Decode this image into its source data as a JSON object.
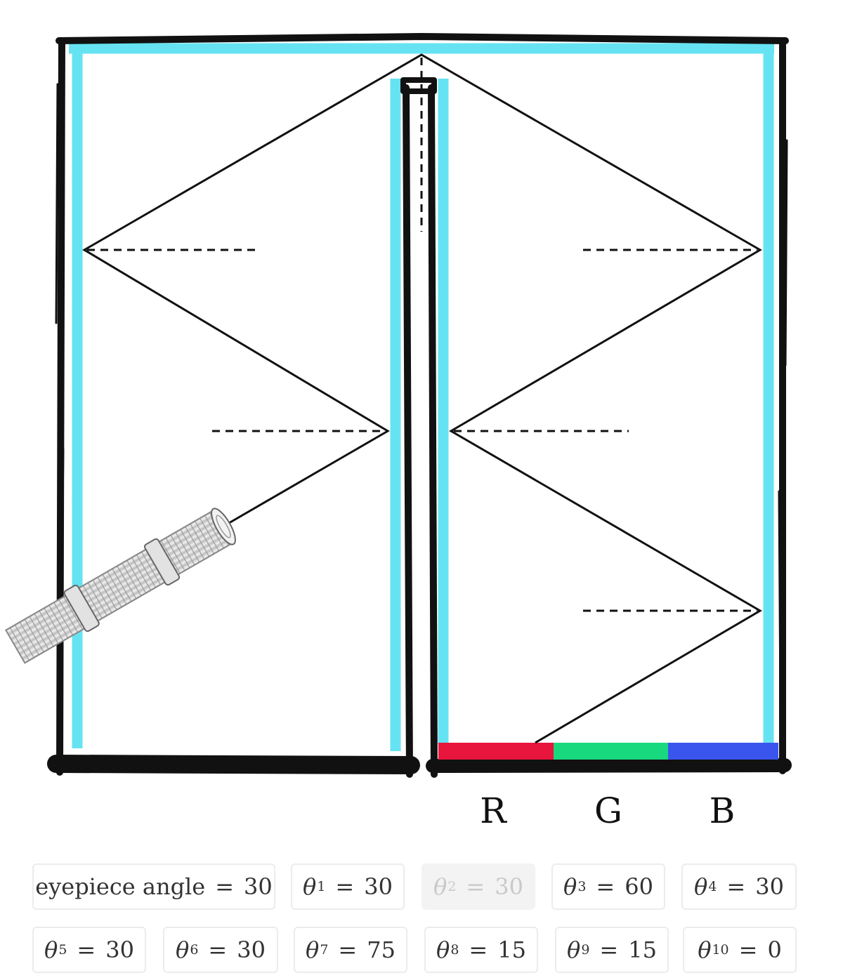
{
  "diagram": {
    "sensor_labels": [
      "R",
      "G",
      "B"
    ],
    "sensor_colors": [
      "#e8153c",
      "#19d97f",
      "#3a55ee"
    ],
    "mirror_color": "#66e3f2",
    "ink_color": "#111111",
    "eyepiece_angle_deg": 30
  },
  "controls": {
    "row1": [
      {
        "name": "eyepiece-angle",
        "symbol": "eyepiece angle",
        "sub": "",
        "value": "30",
        "disabled": false
      },
      {
        "name": "theta-1",
        "symbol": "θ",
        "sub": "1",
        "value": "30",
        "disabled": false
      },
      {
        "name": "theta-2",
        "symbol": "θ",
        "sub": "2",
        "value": "30",
        "disabled": true
      },
      {
        "name": "theta-3",
        "symbol": "θ",
        "sub": "3",
        "value": "60",
        "disabled": false
      },
      {
        "name": "theta-4",
        "symbol": "θ",
        "sub": "4",
        "value": "30",
        "disabled": false
      }
    ],
    "row2": [
      {
        "name": "theta-5",
        "symbol": "θ",
        "sub": "5",
        "value": "30",
        "disabled": false
      },
      {
        "name": "theta-6",
        "symbol": "θ",
        "sub": "6",
        "value": "30",
        "disabled": false
      },
      {
        "name": "theta-7",
        "symbol": "θ",
        "sub": "7",
        "value": "75",
        "disabled": false
      },
      {
        "name": "theta-8",
        "symbol": "θ",
        "sub": "8",
        "value": "15",
        "disabled": false
      },
      {
        "name": "theta-9",
        "symbol": "θ",
        "sub": "9",
        "value": "15",
        "disabled": false
      },
      {
        "name": "theta-10",
        "symbol": "θ",
        "sub": "10",
        "value": "0",
        "disabled": false
      }
    ]
  }
}
